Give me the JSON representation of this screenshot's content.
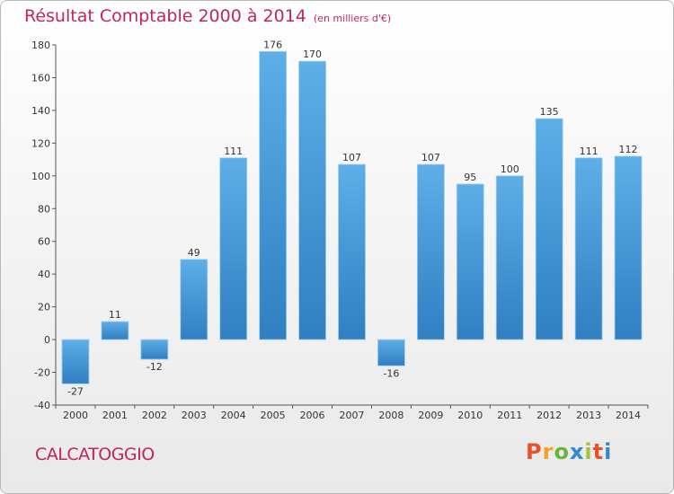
{
  "title": "Résultat Comptable 2000 à 2014",
  "subtitle": "(en milliers d'€)",
  "commune": "CALCATOGGIO",
  "logo": [
    "P",
    "r",
    "o",
    "x",
    "i",
    "t",
    "i"
  ],
  "colors": {
    "title": "#c2245e",
    "bar_top": "#5eaee8",
    "bar_bottom": "#2f7fc2",
    "logo": [
      "#e8522a",
      "#f2a324",
      "#6ab43e",
      "#2f8ad0",
      "#a3c43a",
      "#e8522a",
      "#2f8ad0"
    ]
  },
  "chart_data": {
    "type": "bar",
    "categories": [
      "2000",
      "2001",
      "2002",
      "2003",
      "2004",
      "2005",
      "2006",
      "2007",
      "2008",
      "2009",
      "2010",
      "2011",
      "2012",
      "2013",
      "2014"
    ],
    "values": [
      -27,
      11,
      -12,
      49,
      111,
      176,
      170,
      107,
      -16,
      107,
      95,
      100,
      135,
      111,
      112
    ],
    "labels": [
      "-27",
      "11",
      "-12",
      "49",
      "111",
      "176",
      "170",
      "107",
      "-16",
      "107",
      "95",
      "100",
      "135",
      "111",
      "112"
    ],
    "ylim": [
      -40,
      180
    ],
    "yticks": [
      "-40",
      "-20",
      "0",
      "20",
      "40",
      "60",
      "80",
      "100",
      "120",
      "140",
      "160",
      "180"
    ],
    "grid": false
  }
}
